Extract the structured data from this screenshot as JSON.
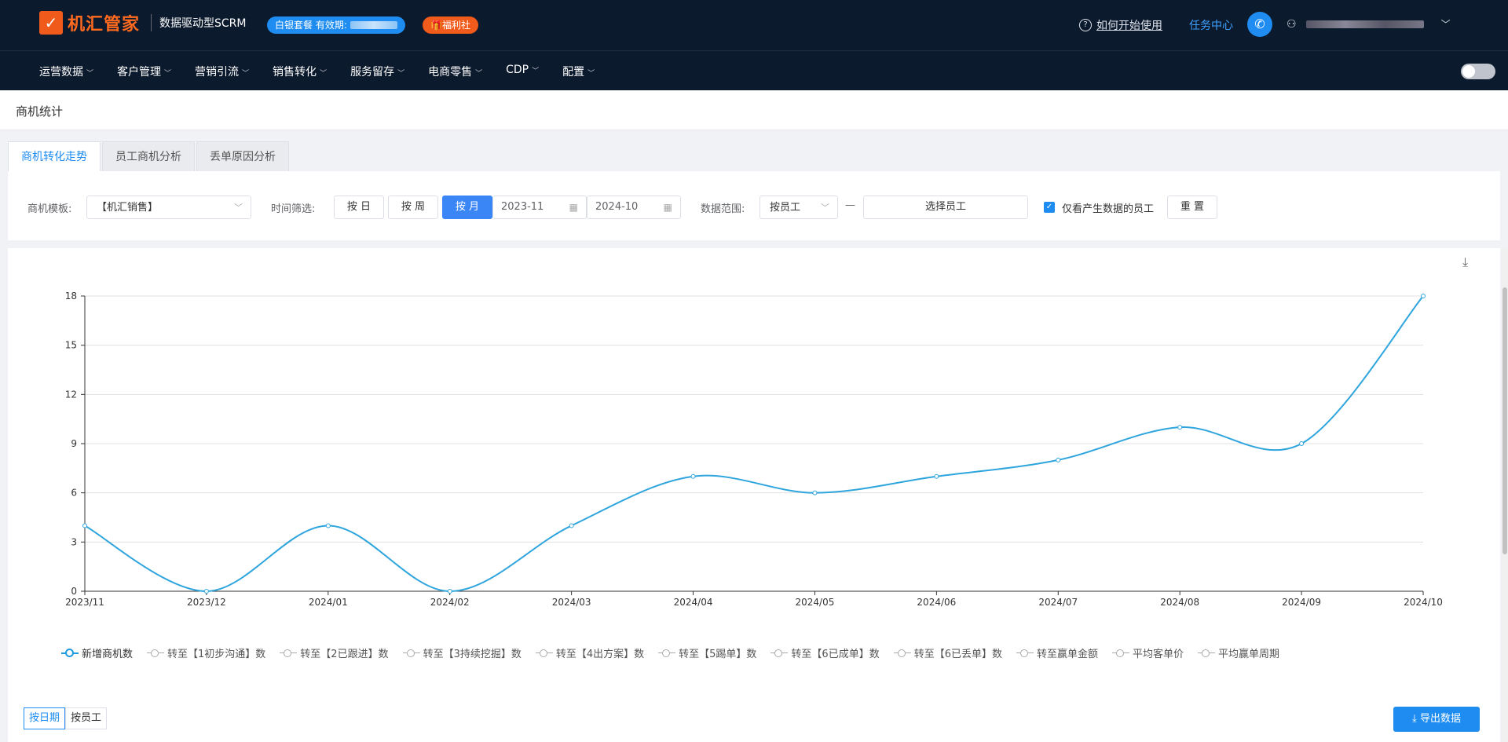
{
  "header": {
    "logo_mark": "✓",
    "logo_text": "机汇管家",
    "subtitle": "数据驱动型SCRM",
    "plan_badge": "白银套餐 有效期:",
    "welfare_badge": "🎁福利社",
    "help_link": "如何开始使用",
    "task_center": "任务中心"
  },
  "nav": {
    "items": [
      {
        "label": "运营数据"
      },
      {
        "label": "客户管理"
      },
      {
        "label": "营销引流"
      },
      {
        "label": "销售转化"
      },
      {
        "label": "服务留存"
      },
      {
        "label": "电商零售"
      },
      {
        "label": "CDP"
      },
      {
        "label": "配置"
      }
    ]
  },
  "page": {
    "title": "商机统计",
    "tabs": [
      {
        "label": "商机转化走势",
        "active": true
      },
      {
        "label": "员工商机分析",
        "active": false
      },
      {
        "label": "丢单原因分析",
        "active": false
      }
    ]
  },
  "filters": {
    "template_label": "商机模板:",
    "template_value": "【机汇销售】",
    "time_label": "时间筛选:",
    "by_day": "按 日",
    "by_week": "按 周",
    "by_month": "按 月",
    "date_start": "2023-11",
    "date_end": "2024-10",
    "range_label": "数据范围:",
    "range_value": "按员工",
    "dash": "—",
    "select_staff": "选择员工",
    "only_data_staff": "仅看产生数据的员工",
    "reset": "重 置"
  },
  "chart_data": {
    "type": "line",
    "x": [
      "2023/11",
      "2023/12",
      "2024/01",
      "2024/02",
      "2024/03",
      "2024/04",
      "2024/05",
      "2024/06",
      "2024/07",
      "2024/08",
      "2024/09",
      "2024/10"
    ],
    "series": [
      {
        "name": "新增商机数",
        "values": [
          4,
          0,
          4,
          0,
          4,
          7,
          6,
          7,
          8,
          10,
          9,
          18
        ],
        "color": "#2fa5dd"
      }
    ],
    "ylim": [
      0,
      18
    ],
    "yticks": [
      "0",
      "3",
      "6",
      "9",
      "12",
      "15",
      "18"
    ],
    "legend": [
      "新增商机数",
      "转至【1初步沟通】数",
      "转至【2已跟进】数",
      "转至【3持续挖掘】数",
      "转至【4出方案】数",
      "转至【5踢单】数",
      "转至【6已成单】数",
      "转至【6已丢单】数",
      "转至赢单金额",
      "平均客单价",
      "平均赢单周期"
    ],
    "legend_placement": "bottom",
    "grid": true
  },
  "bottom": {
    "by_date": "按日期",
    "by_staff": "按员工",
    "export": "导出数据"
  }
}
